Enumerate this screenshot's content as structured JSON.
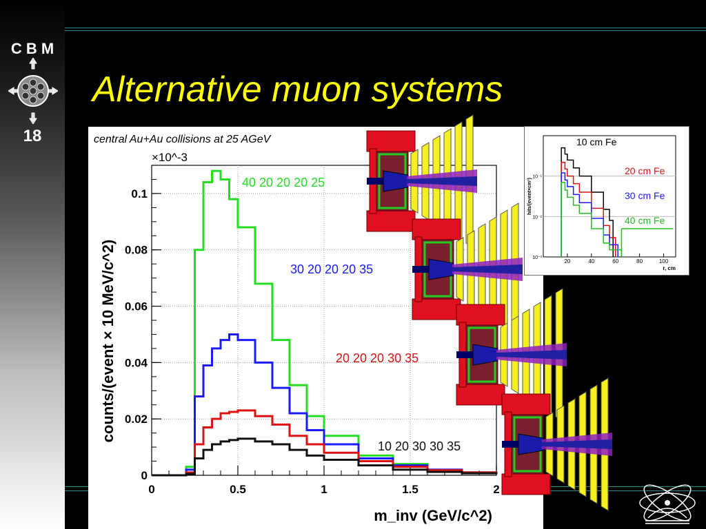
{
  "brand": {
    "name": "C B M",
    "slide_number": "18"
  },
  "slide_title": "Alternative muon systems",
  "chart_data": [
    {
      "type": "line",
      "title": "central Au+Au collisions at 25 AGeV",
      "xlabel": "m_inv (GeV/c^2)",
      "ylabel": "counts/(event × 10 MeV/c^2)",
      "y_multiplier": "×10^-3",
      "xlim": [
        0,
        2
      ],
      "ylim": [
        0,
        0.11
      ],
      "x_ticks": [
        "0",
        "0.5",
        "1",
        "1.5",
        "2"
      ],
      "y_ticks": [
        "0",
        "0.02",
        "0.04",
        "0.06",
        "0.08",
        "0.1"
      ],
      "x": [
        0.2,
        0.25,
        0.3,
        0.35,
        0.4,
        0.45,
        0.5,
        0.6,
        0.7,
        0.8,
        0.9,
        1.0,
        1.2,
        1.4,
        1.6,
        1.8,
        2.0
      ],
      "series": [
        {
          "name": "40 20 20 20 25",
          "color": "#22dd22",
          "values": [
            0.003,
            0.08,
            0.104,
            0.108,
            0.105,
            0.098,
            0.088,
            0.068,
            0.048,
            0.032,
            0.021,
            0.014,
            0.007,
            0.004,
            0.002,
            0.001,
            0.0005
          ]
        },
        {
          "name": "30 20 20 20 35",
          "color": "#1a1aff",
          "values": [
            0.002,
            0.028,
            0.039,
            0.045,
            0.048,
            0.05,
            0.048,
            0.04,
            0.031,
            0.022,
            0.016,
            0.011,
            0.006,
            0.0035,
            0.002,
            0.001,
            0.0005
          ]
        },
        {
          "name": "20 20 20 30 35",
          "color": "#dd1111",
          "values": [
            0.001,
            0.011,
            0.017,
            0.02,
            0.022,
            0.0225,
            0.023,
            0.021,
            0.018,
            0.014,
            0.011,
            0.008,
            0.005,
            0.003,
            0.0018,
            0.001,
            0.0005
          ]
        },
        {
          "name": "10 20 30 30 35",
          "color": "#111111",
          "values": [
            0.0005,
            0.006,
            0.009,
            0.011,
            0.012,
            0.0125,
            0.013,
            0.012,
            0.011,
            0.009,
            0.007,
            0.0055,
            0.0035,
            0.002,
            0.0012,
            0.0007,
            0.0004
          ]
        }
      ]
    },
    {
      "type": "line",
      "xlabel": "r, cm",
      "ylabel": "hits/(event×cm²)",
      "x_ticks": [
        "20",
        "40",
        "60",
        "80",
        "100"
      ],
      "y_ticks": [
        "10⁻¹",
        "10⁻²",
        "10⁻³"
      ],
      "log_y": true,
      "xlim": [
        0,
        110
      ],
      "ylim_exp": [
        -3,
        0
      ],
      "series": [
        {
          "name": "10 cm Fe",
          "color": "#000000",
          "x": [
            15,
            18,
            20,
            25,
            30,
            40,
            50,
            55,
            58
          ],
          "values": [
            0.5,
            0.35,
            0.25,
            0.16,
            0.1,
            0.04,
            0.015,
            0.008,
            0.0012
          ]
        },
        {
          "name": "20 cm Fe",
          "color": "#dd1111",
          "x": [
            15,
            18,
            20,
            25,
            30,
            40,
            50,
            55,
            60
          ],
          "values": [
            0.22,
            0.15,
            0.1,
            0.065,
            0.04,
            0.016,
            0.006,
            0.003,
            0.0012
          ]
        },
        {
          "name": "30 cm Fe",
          "color": "#1a1aff",
          "x": [
            15,
            18,
            20,
            25,
            30,
            40,
            50,
            55,
            62
          ],
          "values": [
            0.12,
            0.08,
            0.055,
            0.035,
            0.022,
            0.009,
            0.0035,
            0.002,
            0.0012
          ]
        },
        {
          "name": "40 cm Fe",
          "color": "#22bb22",
          "x": [
            15,
            18,
            20,
            25,
            30,
            40,
            50,
            55,
            65
          ],
          "values": [
            0.07,
            0.045,
            0.03,
            0.019,
            0.012,
            0.005,
            0.0022,
            0.0015,
            0.0012
          ]
        }
      ]
    }
  ]
}
